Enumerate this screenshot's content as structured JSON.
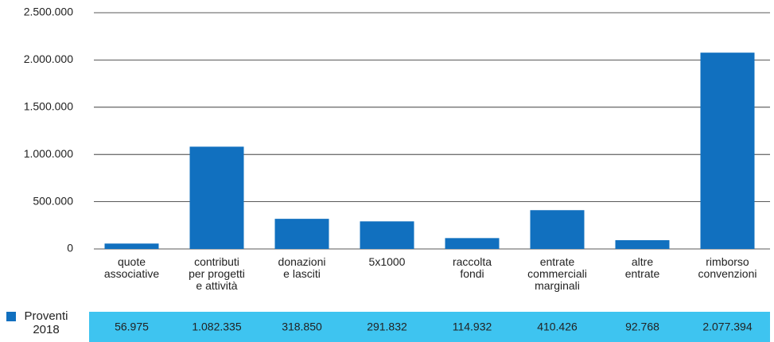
{
  "chart_data": {
    "type": "bar",
    "categories": [
      "quote\nassociative",
      "contributi\nper progetti\ne attività",
      "donazioni\ne lasciti",
      "5x1000",
      "raccolta\nfondi",
      "entrate\ncommerciali\nmarginali",
      "altre\nentrate",
      "rimborso\nconvenzioni"
    ],
    "series": [
      {
        "name": "Proventi\n2018",
        "color": "#1170bf",
        "values": [
          56975,
          1082335,
          318850,
          291832,
          114932,
          410426,
          92768,
          2077394
        ],
        "value_labels": [
          "56.975",
          "1.082.335",
          "318.850",
          "291.832",
          "114.932",
          "410.426",
          "92.768",
          "2.077.394"
        ]
      }
    ],
    "ylim": [
      0,
      2500000
    ],
    "yticks": [
      0,
      {
        "value": 500000,
        "label": "500.000"
      },
      {
        "value": 1000000,
        "label": "1.000.000"
      },
      {
        "value": 1500000,
        "label": "1.500.000"
      },
      {
        "value": 2000000,
        "label": "2.000.000"
      },
      {
        "value": 2500000,
        "label": "2.500.000"
      }
    ],
    "grid": true,
    "table_color": "#3ec4f0"
  }
}
